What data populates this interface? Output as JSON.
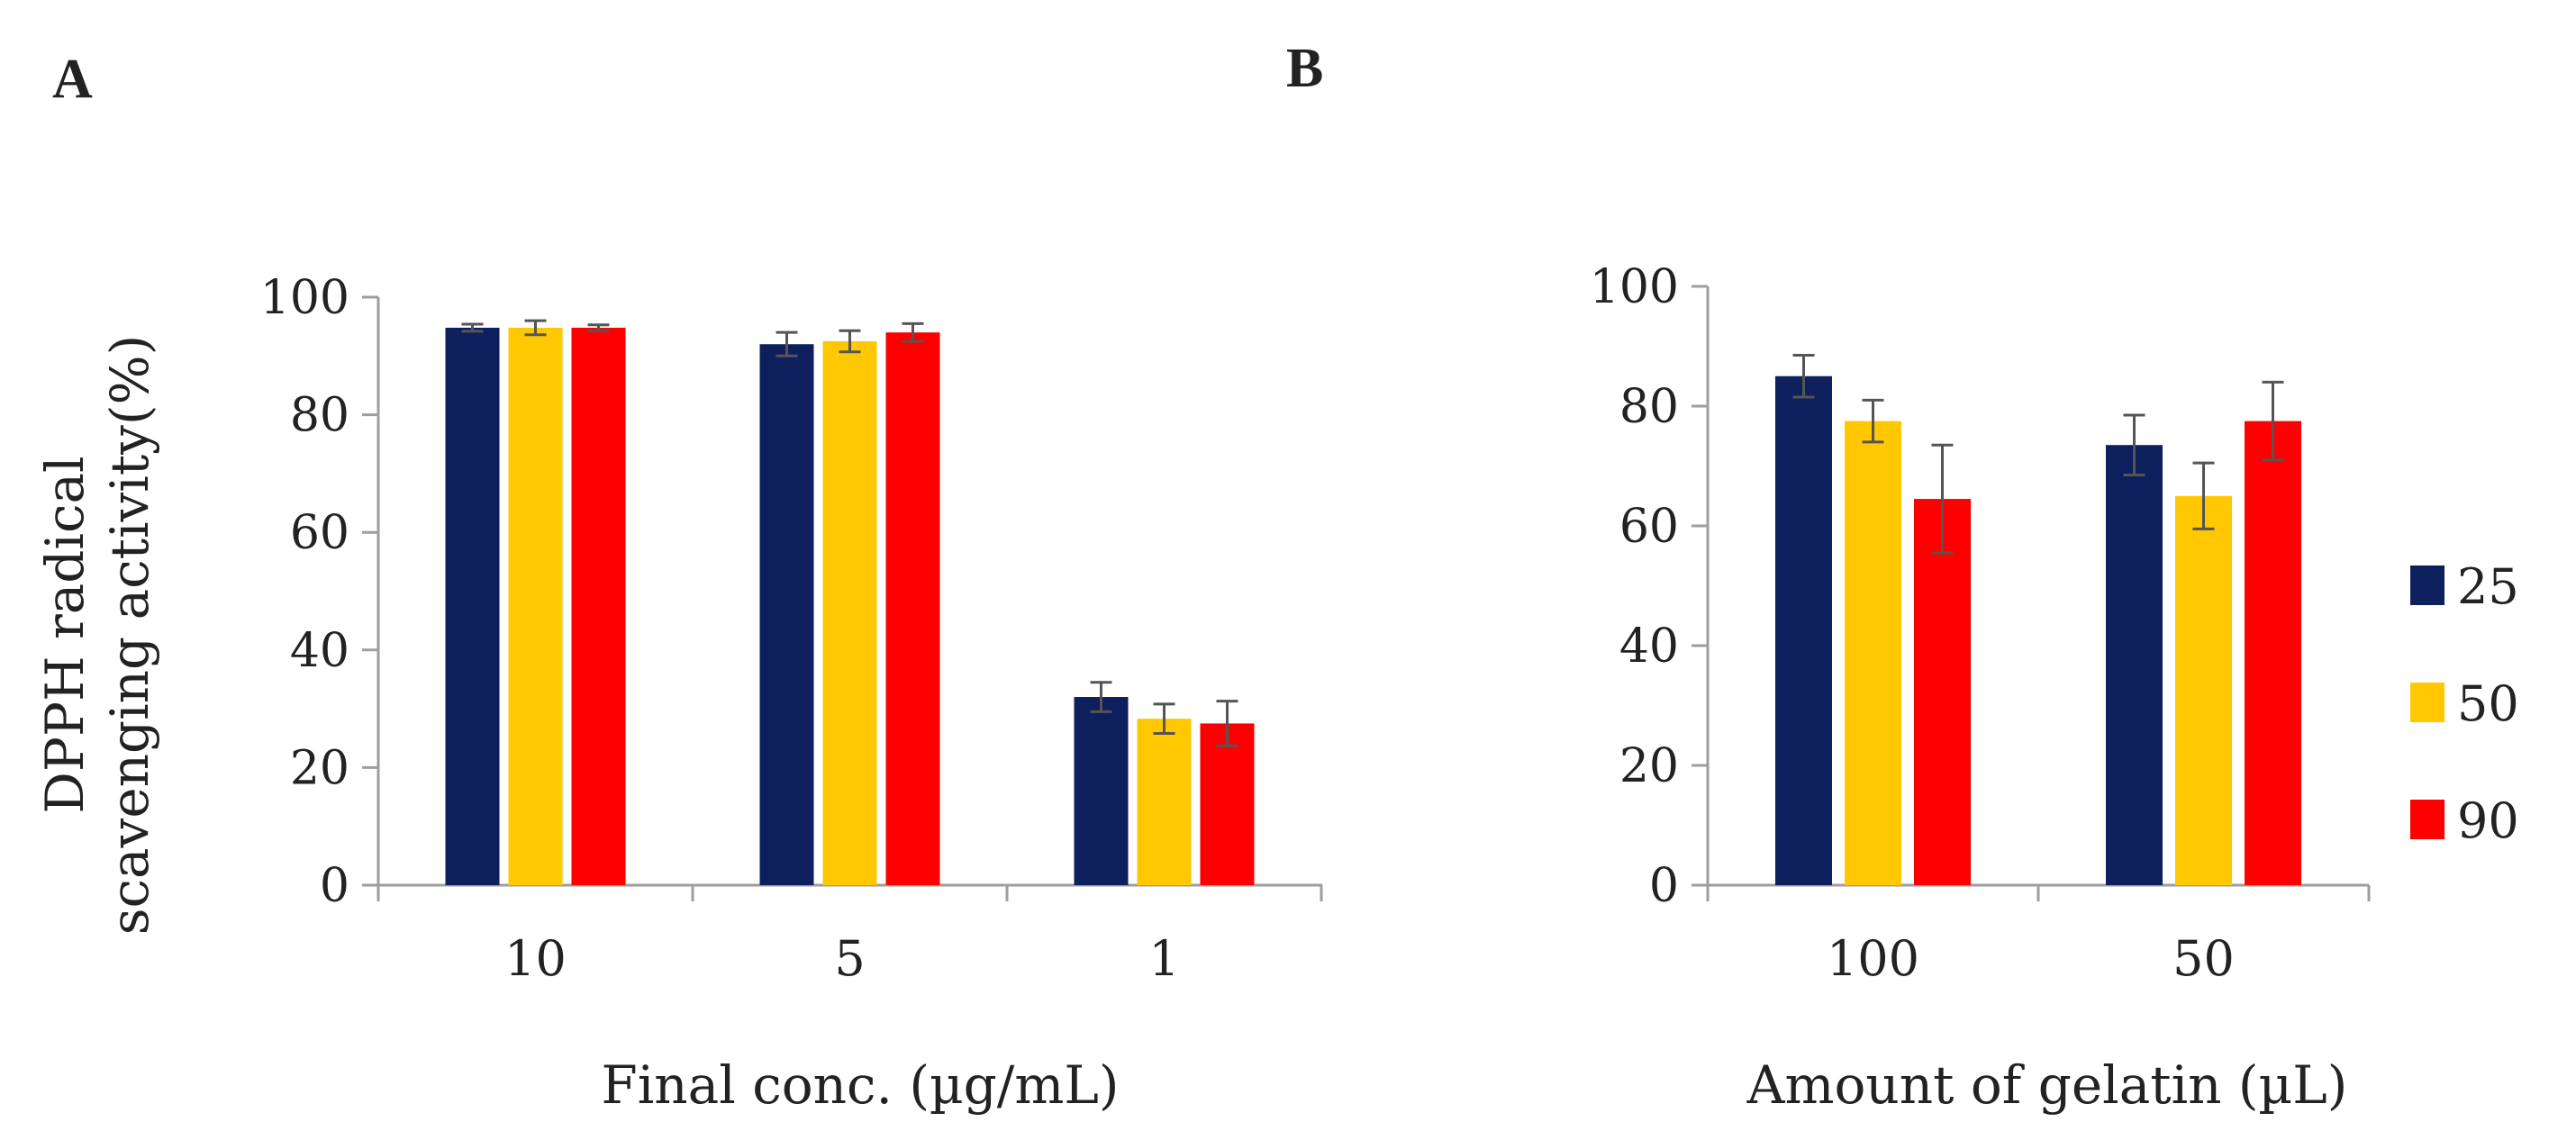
{
  "chart_data": [
    {
      "type": "bar",
      "panel_label": "A",
      "title": "",
      "xlabel": "Final conc. (µg/mL)",
      "ylabel_lines": [
        "DPPH radical",
        "scavenging activity(%)"
      ],
      "categories": [
        "10",
        "5",
        "1"
      ],
      "series": [
        {
          "name": "25",
          "values": [
            94.8,
            92.0,
            32.0
          ],
          "errors": [
            0.6,
            2.0,
            2.5
          ]
        },
        {
          "name": "50",
          "values": [
            94.8,
            92.5,
            28.3
          ],
          "errors": [
            1.2,
            1.8,
            2.5
          ]
        },
        {
          "name": "90",
          "values": [
            94.8,
            94.0,
            27.5
          ],
          "errors": [
            0.5,
            1.5,
            3.8
          ]
        }
      ],
      "ylim": [
        0,
        100
      ],
      "yticks": [
        0,
        20,
        40,
        60,
        80,
        100
      ],
      "grid": false,
      "error_bars": true
    },
    {
      "type": "bar",
      "panel_label": "B",
      "title": "",
      "xlabel": "Amount of gelatin (µL)",
      "ylabel": "",
      "categories": [
        "100",
        "50"
      ],
      "series": [
        {
          "name": "25",
          "values": [
            85.0,
            73.5
          ],
          "errors": [
            3.5,
            5.0
          ]
        },
        {
          "name": "50",
          "values": [
            77.5,
            65.0
          ],
          "errors": [
            3.5,
            5.5
          ]
        },
        {
          "name": "90",
          "values": [
            64.5,
            77.5
          ],
          "errors": [
            9.0,
            6.5
          ]
        }
      ],
      "ylim": [
        0,
        100
      ],
      "yticks": [
        0,
        20,
        40,
        60,
        80,
        100
      ],
      "grid": false,
      "error_bars": true,
      "legend": {
        "placement": "right",
        "entries": [
          {
            "label": "25",
            "color": "#0d1f5c"
          },
          {
            "label": "50",
            "color": "#ffc800"
          },
          {
            "label": "90",
            "color": "#ff0000"
          }
        ]
      }
    }
  ],
  "colors": {
    "series": [
      "#0d1f5c",
      "#ffc800",
      "#ff0000"
    ],
    "axis": "#9e9e9e",
    "error_bar": "#555555",
    "text": "#222222"
  }
}
